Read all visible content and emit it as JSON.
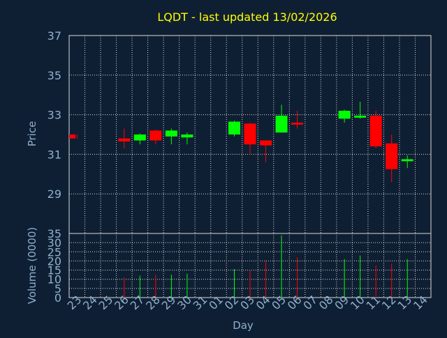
{
  "title": "LQDT - last updated 13/02/2026",
  "colors": {
    "background": "#0f1f33",
    "title": "#ffff00",
    "axis_text": "#8fb0cc",
    "grid": "#d9d9d9",
    "up": "#00ff00",
    "down": "#ff0000"
  },
  "chart_data": [
    {
      "type": "candlestick",
      "ylabel": "Price",
      "ylim": [
        27,
        37
      ],
      "yticks": [
        "29",
        "31",
        "33",
        "35",
        "37"
      ],
      "x_categories": [
        "23",
        "24",
        "25",
        "26",
        "27",
        "28",
        "29",
        "30",
        "31",
        "01",
        "02",
        "03",
        "04",
        "05",
        "06",
        "07",
        "08",
        "09",
        "10",
        "11",
        "12",
        "13",
        "14"
      ],
      "grid": true,
      "candles": [
        {
          "x": "23",
          "open": 32.0,
          "high": 32.0,
          "low": 31.8,
          "close": 31.8
        },
        {
          "x": "26",
          "open": 31.8,
          "high": 32.3,
          "low": 31.3,
          "close": 31.65
        },
        {
          "x": "27",
          "open": 31.7,
          "high": 32.05,
          "low": 31.5,
          "close": 32.0
        },
        {
          "x": "28",
          "open": 32.2,
          "high": 32.25,
          "low": 31.5,
          "close": 31.7
        },
        {
          "x": "29",
          "open": 31.9,
          "high": 32.3,
          "low": 31.5,
          "close": 32.2
        },
        {
          "x": "30",
          "open": 31.85,
          "high": 32.1,
          "low": 31.5,
          "close": 32.0
        },
        {
          "x": "02",
          "open": 32.0,
          "high": 32.7,
          "low": 31.9,
          "close": 32.65
        },
        {
          "x": "03",
          "open": 32.55,
          "high": 32.6,
          "low": 31.0,
          "close": 31.5
        },
        {
          "x": "04",
          "open": 31.7,
          "high": 31.7,
          "low": 30.6,
          "close": 31.45
        },
        {
          "x": "05",
          "open": 32.1,
          "high": 33.5,
          "low": 32.1,
          "close": 32.95
        },
        {
          "x": "06",
          "open": 32.6,
          "high": 33.2,
          "low": 32.3,
          "close": 32.5
        },
        {
          "x": "09",
          "open": 32.8,
          "high": 33.25,
          "low": 32.6,
          "close": 33.2
        },
        {
          "x": "10",
          "open": 32.85,
          "high": 33.65,
          "low": 32.8,
          "close": 32.95
        },
        {
          "x": "11",
          "open": 32.95,
          "high": 33.2,
          "low": 31.3,
          "close": 31.4
        },
        {
          "x": "12",
          "open": 31.55,
          "high": 32.0,
          "low": 29.6,
          "close": 30.25
        },
        {
          "x": "13",
          "open": 30.65,
          "high": 30.95,
          "low": 30.3,
          "close": 30.75
        }
      ]
    },
    {
      "type": "bar",
      "ylabel": "Volume (0000)",
      "xlabel": "Day",
      "ylim": [
        0,
        35
      ],
      "yticks": [
        "0",
        "5",
        "10",
        "15",
        "20",
        "25",
        "30",
        "35"
      ],
      "x_categories": [
        "23",
        "24",
        "25",
        "26",
        "27",
        "28",
        "29",
        "30",
        "31",
        "01",
        "02",
        "03",
        "04",
        "05",
        "06",
        "07",
        "08",
        "09",
        "10",
        "11",
        "12",
        "13",
        "14"
      ],
      "grid": true,
      "bars": [
        {
          "x": "26",
          "value": 11,
          "direction": "down"
        },
        {
          "x": "27",
          "value": 12,
          "direction": "up"
        },
        {
          "x": "28",
          "value": 12.5,
          "direction": "down"
        },
        {
          "x": "29",
          "value": 12.5,
          "direction": "up"
        },
        {
          "x": "30",
          "value": 13,
          "direction": "up"
        },
        {
          "x": "02",
          "value": 15.5,
          "direction": "up"
        },
        {
          "x": "03",
          "value": 15,
          "direction": "down"
        },
        {
          "x": "04",
          "value": 20,
          "direction": "down"
        },
        {
          "x": "05",
          "value": 34,
          "direction": "up"
        },
        {
          "x": "06",
          "value": 22,
          "direction": "down"
        },
        {
          "x": "09",
          "value": 21,
          "direction": "up"
        },
        {
          "x": "10",
          "value": 23,
          "direction": "up"
        },
        {
          "x": "11",
          "value": 17.5,
          "direction": "down"
        },
        {
          "x": "12",
          "value": 18.5,
          "direction": "down"
        },
        {
          "x": "13",
          "value": 21,
          "direction": "up"
        }
      ]
    }
  ]
}
